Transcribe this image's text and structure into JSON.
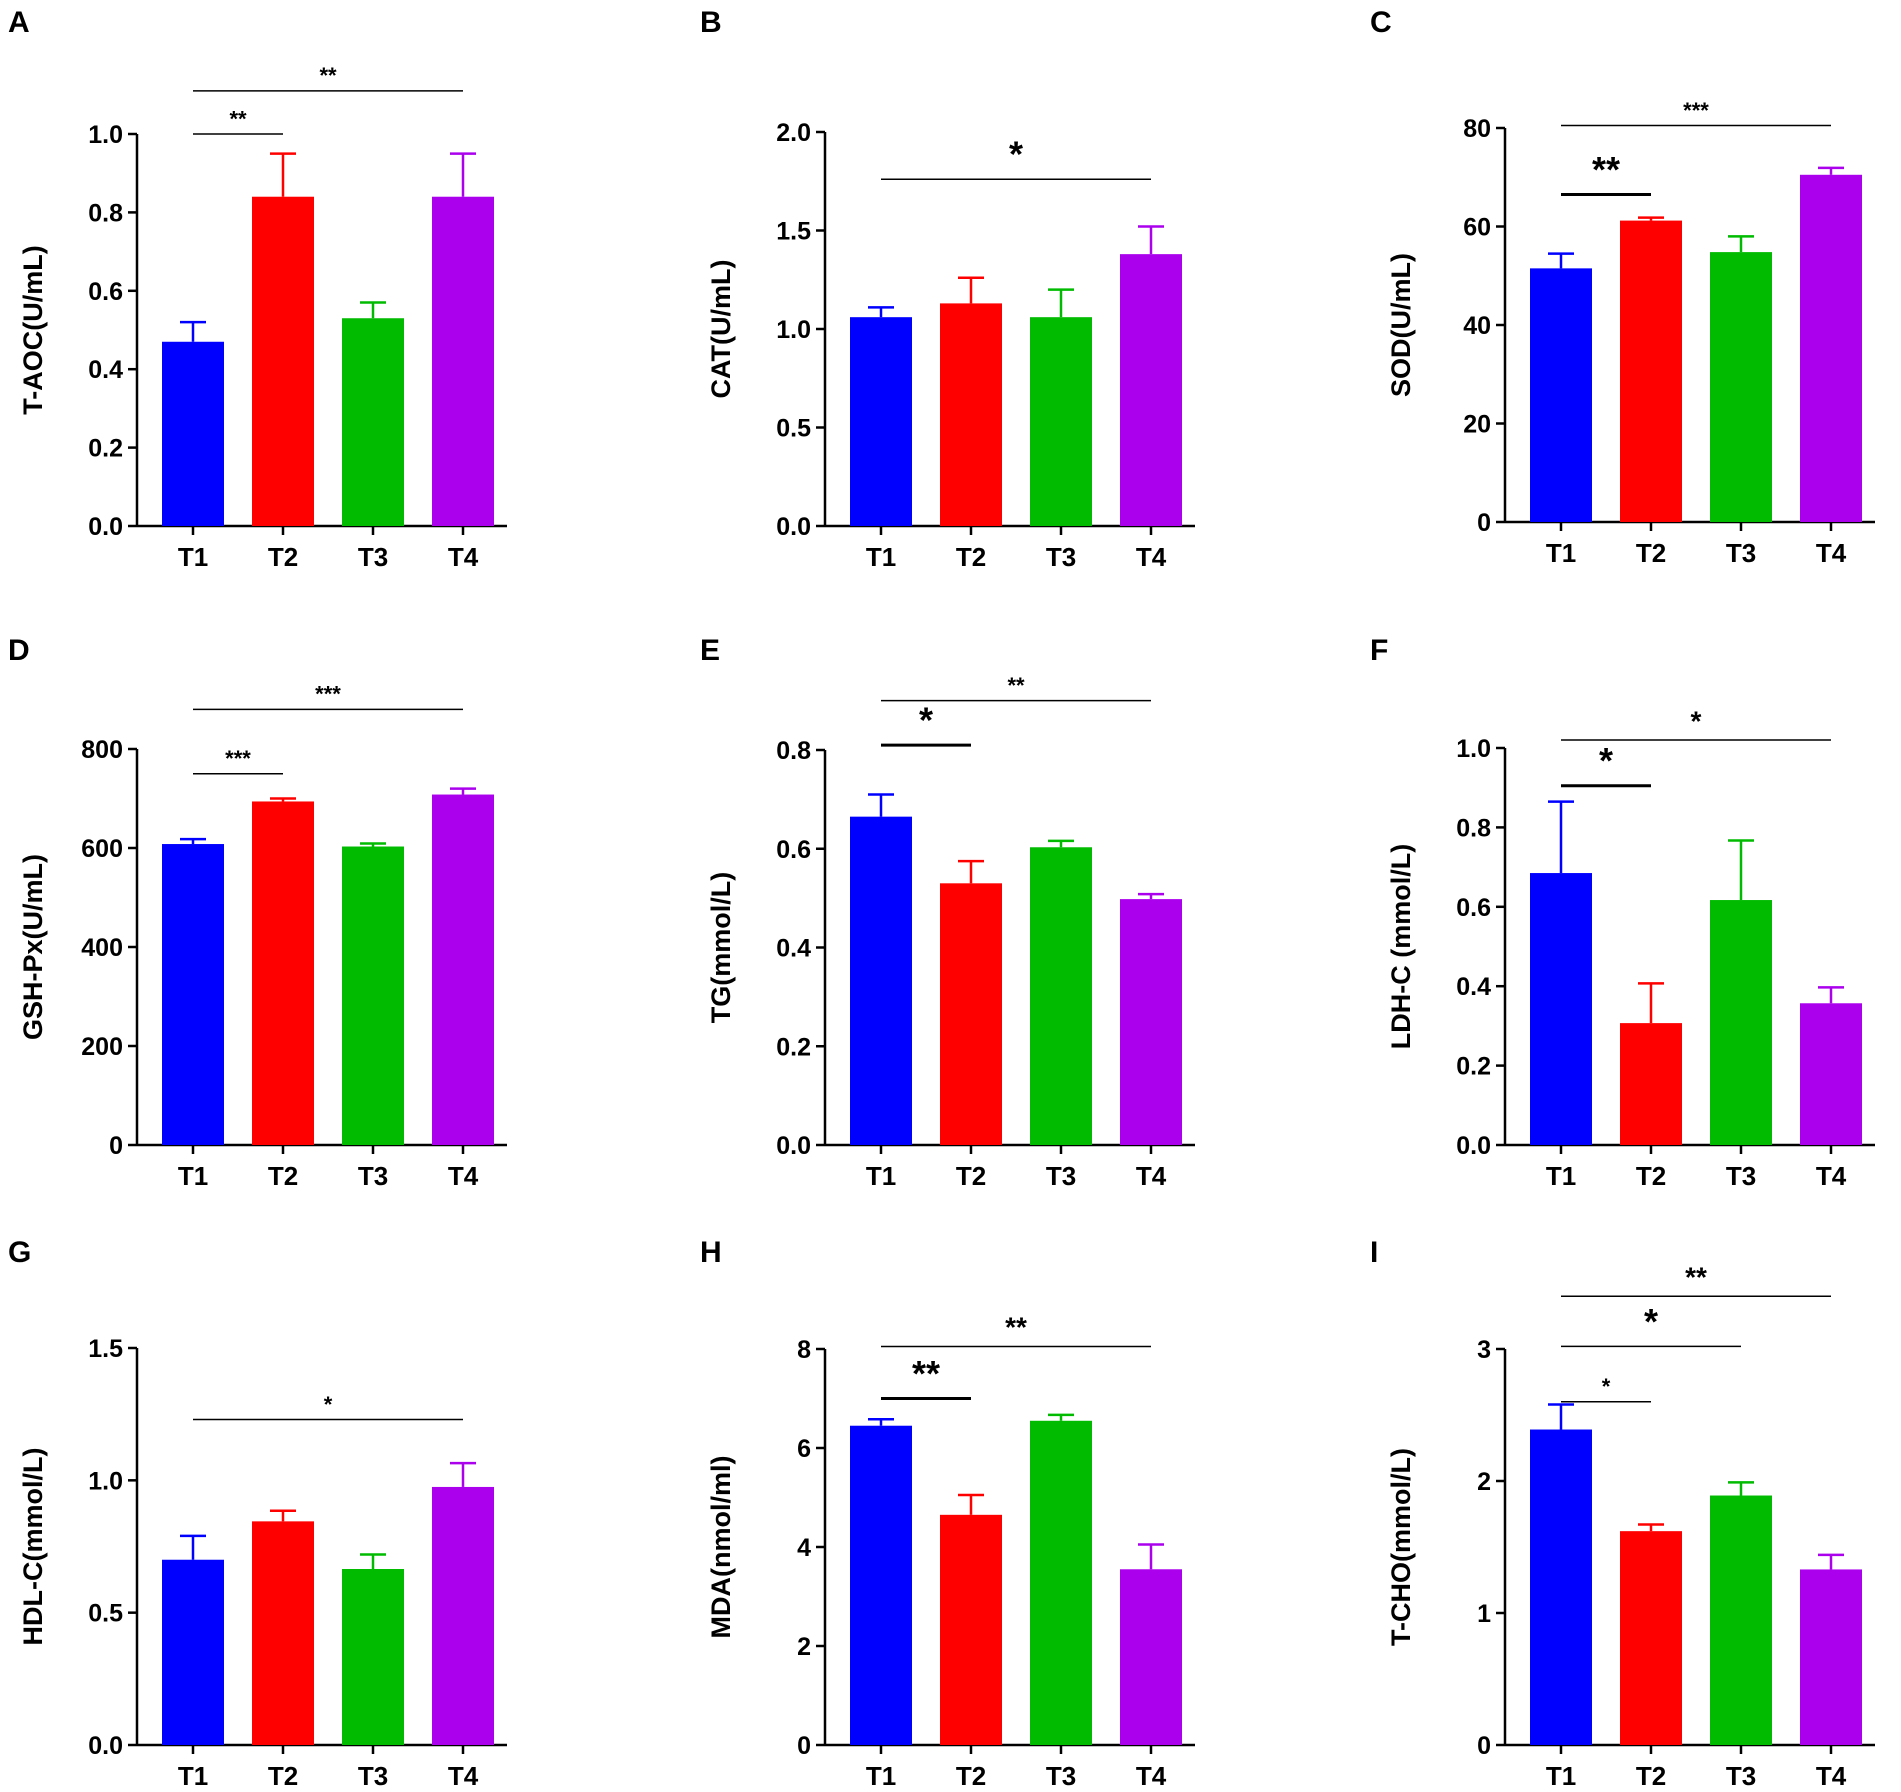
{
  "figure": {
    "background": "#ffffff"
  },
  "chart_data": [
    {
      "panel": "A",
      "type": "bar",
      "categories": [
        "T1",
        "T2",
        "T3",
        "T4"
      ],
      "colors": [
        "#0000ff",
        "#ff0000",
        "#00bb00",
        "#aa00ee"
      ],
      "values": [
        0.47,
        0.84,
        0.53,
        0.84
      ],
      "errors": [
        0.05,
        0.11,
        0.04,
        0.11
      ],
      "ylabel": "T-AOC(U/mL)",
      "ylim": [
        0,
        1.0
      ],
      "yticks": [
        0.0,
        0.2,
        0.4,
        0.6,
        0.8,
        1.0
      ],
      "ytick_labels": [
        "0.0",
        "0.2",
        "0.4",
        "0.6",
        "0.8",
        "1.0"
      ],
      "annotations": [
        {
          "from": "T1",
          "to": "T2",
          "label": "**",
          "level": 1.0,
          "size": "small"
        },
        {
          "from": "T1",
          "to": "T4",
          "label": "**",
          "level": 1.11,
          "size": "small"
        }
      ]
    },
    {
      "panel": "B",
      "type": "bar",
      "categories": [
        "T1",
        "T2",
        "T3",
        "T4"
      ],
      "colors": [
        "#0000ff",
        "#ff0000",
        "#00bb00",
        "#aa00ee"
      ],
      "values": [
        1.06,
        1.13,
        1.06,
        1.38
      ],
      "errors": [
        0.05,
        0.13,
        0.14,
        0.14
      ],
      "ylabel": "CAT(U/mL)",
      "ylim": [
        0,
        2.0
      ],
      "yticks": [
        0.0,
        0.5,
        1.0,
        1.5,
        2.0
      ],
      "ytick_labels": [
        "0.0",
        "0.5",
        "1.0",
        "1.5",
        "2.0"
      ],
      "annotations": [
        {
          "from": "T1",
          "to": "T4",
          "label": "*",
          "level": 1.76,
          "size": "large"
        }
      ]
    },
    {
      "panel": "C",
      "type": "bar",
      "categories": [
        "T1",
        "T2",
        "T3",
        "T4"
      ],
      "colors": [
        "#0000ff",
        "#ff0000",
        "#00bb00",
        "#aa00ee"
      ],
      "values": [
        51.5,
        61.2,
        54.8,
        70.5
      ],
      "errors": [
        3.0,
        0.6,
        3.2,
        1.4
      ],
      "ylabel": "SOD(U/mL)",
      "ylim": [
        0,
        80
      ],
      "yticks": [
        0,
        20,
        40,
        60,
        80
      ],
      "ytick_labels": [
        "0",
        "20",
        "40",
        "60",
        "80"
      ],
      "annotations": [
        {
          "from": "T1",
          "to": "T2",
          "label": "**",
          "level": 66.5,
          "size": "large"
        },
        {
          "from": "T1",
          "to": "T4",
          "label": "***",
          "level": 80.5,
          "size": "small"
        }
      ]
    },
    {
      "panel": "D",
      "type": "bar",
      "categories": [
        "T1",
        "T2",
        "T3",
        "T4"
      ],
      "colors": [
        "#0000ff",
        "#ff0000",
        "#00bb00",
        "#aa00ee"
      ],
      "values": [
        608,
        694,
        603,
        708
      ],
      "errors": [
        10,
        6,
        6,
        12
      ],
      "ylabel": "GSH-Px(U/mL)",
      "ylim": [
        0,
        800
      ],
      "yticks": [
        0,
        200,
        400,
        600,
        800
      ],
      "ytick_labels": [
        "0",
        "200",
        "400",
        "600",
        "800"
      ],
      "annotations": [
        {
          "from": "T1",
          "to": "T2",
          "label": "***",
          "level": 750,
          "size": "small"
        },
        {
          "from": "T1",
          "to": "T4",
          "label": "***",
          "level": 880,
          "size": "small"
        }
      ]
    },
    {
      "panel": "E",
      "type": "bar",
      "categories": [
        "T1",
        "T2",
        "T3",
        "T4"
      ],
      "colors": [
        "#0000ff",
        "#ff0000",
        "#00bb00",
        "#aa00ee"
      ],
      "values": [
        0.665,
        0.53,
        0.603,
        0.498
      ],
      "errors": [
        0.045,
        0.045,
        0.013,
        0.01
      ],
      "ylabel": "TG(mmol/L)",
      "ylim": [
        0,
        0.8
      ],
      "yticks": [
        0.0,
        0.2,
        0.4,
        0.6,
        0.8
      ],
      "ytick_labels": [
        "0.0",
        "0.2",
        "0.4",
        "0.6",
        "0.8"
      ],
      "annotations": [
        {
          "from": "T1",
          "to": "T2",
          "label": "*",
          "level": 0.81,
          "size": "large"
        },
        {
          "from": "T1",
          "to": "T4",
          "label": "**",
          "level": 0.9,
          "size": "small"
        }
      ]
    },
    {
      "panel": "F",
      "type": "bar",
      "categories": [
        "T1",
        "T2",
        "T3",
        "T4"
      ],
      "colors": [
        "#0000ff",
        "#ff0000",
        "#00bb00",
        "#aa00ee"
      ],
      "values": [
        0.685,
        0.307,
        0.617,
        0.357
      ],
      "errors": [
        0.18,
        0.1,
        0.15,
        0.04
      ],
      "ylabel": "LDH-C (mmol/L)",
      "ylim": [
        0,
        1.0
      ],
      "yticks": [
        0.0,
        0.2,
        0.4,
        0.6,
        0.8,
        1.0
      ],
      "ytick_labels": [
        "0.0",
        "0.2",
        "0.4",
        "0.6",
        "0.8",
        "1.0"
      ],
      "annotations": [
        {
          "from": "T1",
          "to": "T2",
          "label": "*",
          "level": 0.905,
          "size": "large"
        },
        {
          "from": "T1",
          "to": "T4",
          "label": "*",
          "level": 1.02,
          "size": "medium"
        }
      ]
    },
    {
      "panel": "G",
      "type": "bar",
      "categories": [
        "T1",
        "T2",
        "T3",
        "T4"
      ],
      "colors": [
        "#0000ff",
        "#ff0000",
        "#00bb00",
        "#aa00ee"
      ],
      "values": [
        0.7,
        0.845,
        0.665,
        0.975
      ],
      "errors": [
        0.09,
        0.04,
        0.055,
        0.09
      ],
      "ylabel": "HDL-C(mmol/L)",
      "ylim": [
        0,
        1.5
      ],
      "yticks": [
        0.0,
        0.5,
        1.0,
        1.5
      ],
      "ytick_labels": [
        "0.0",
        "0.5",
        "1.0",
        "1.5"
      ],
      "annotations": [
        {
          "from": "T1",
          "to": "T4",
          "label": "*",
          "level": 1.23,
          "size": "small"
        }
      ]
    },
    {
      "panel": "H",
      "type": "bar",
      "categories": [
        "T1",
        "T2",
        "T3",
        "T4"
      ],
      "colors": [
        "#0000ff",
        "#ff0000",
        "#00bb00",
        "#aa00ee"
      ],
      "values": [
        6.45,
        4.65,
        6.55,
        3.55
      ],
      "errors": [
        0.13,
        0.4,
        0.12,
        0.5
      ],
      "ylabel": "MDA(nmol/ml)",
      "ylim": [
        0,
        8
      ],
      "yticks": [
        0,
        2,
        4,
        6,
        8
      ],
      "ytick_labels": [
        "0",
        "2",
        "4",
        "6",
        "8"
      ],
      "annotations": [
        {
          "from": "T1",
          "to": "T2",
          "label": "**",
          "level": 7.0,
          "size": "large"
        },
        {
          "from": "T1",
          "to": "T4",
          "label": "**",
          "level": 8.05,
          "size": "medium"
        }
      ]
    },
    {
      "panel": "I",
      "type": "bar",
      "categories": [
        "T1",
        "T2",
        "T3",
        "T4"
      ],
      "colors": [
        "#0000ff",
        "#ff0000",
        "#00bb00",
        "#aa00ee"
      ],
      "values": [
        2.39,
        1.62,
        1.89,
        1.33
      ],
      "errors": [
        0.19,
        0.05,
        0.1,
        0.11
      ],
      "ylabel": "T-CHO(mmol/L)",
      "ylim": [
        0,
        3
      ],
      "yticks": [
        0,
        1,
        2,
        3
      ],
      "ytick_labels": [
        "0",
        "1",
        "2",
        "3"
      ],
      "annotations": [
        {
          "from": "T1",
          "to": "T2",
          "label": "*",
          "level": 2.6,
          "size": "small"
        },
        {
          "from": "T1",
          "to": "T3",
          "label": "*",
          "level": 3.02,
          "size": "large"
        },
        {
          "from": "T1",
          "to": "T4",
          "label": "**",
          "level": 3.4,
          "size": "medium"
        }
      ]
    }
  ]
}
